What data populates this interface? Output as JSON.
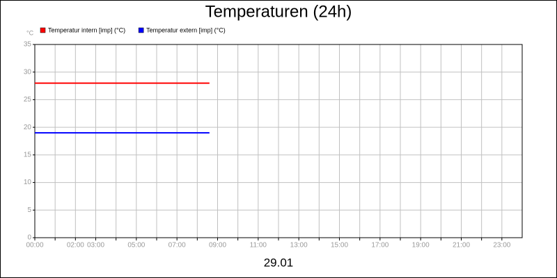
{
  "chart_data": {
    "type": "line",
    "title": "Temperaturen (24h)",
    "ylabel": "°C",
    "xlabel": "29.01",
    "x": [
      0,
      8.6
    ],
    "series": [
      {
        "name": "Temperatur intern [imp] (°C)",
        "color": "#ff0000",
        "values": [
          28,
          28
        ]
      },
      {
        "name": "Temperatur extern [imp] (°C)",
        "color": "#0000ff",
        "values": [
          19,
          19
        ]
      }
    ],
    "xlim": [
      0,
      24
    ],
    "xticks": [
      {
        "value": 0,
        "label": "00:00"
      },
      {
        "value": 1,
        "label": null
      },
      {
        "value": 2,
        "label": "02:00"
      },
      {
        "value": 3,
        "label": "03:00"
      },
      {
        "value": 4,
        "label": null
      },
      {
        "value": 5,
        "label": "05:00"
      },
      {
        "value": 6,
        "label": null
      },
      {
        "value": 7,
        "label": "07:00"
      },
      {
        "value": 8,
        "label": null
      },
      {
        "value": 9,
        "label": "09:00"
      },
      {
        "value": 10,
        "label": null
      },
      {
        "value": 11,
        "label": "11:00"
      },
      {
        "value": 12,
        "label": null
      },
      {
        "value": 13,
        "label": "13:00"
      },
      {
        "value": 14,
        "label": null
      },
      {
        "value": 15,
        "label": "15:00"
      },
      {
        "value": 16,
        "label": null
      },
      {
        "value": 17,
        "label": "17:00"
      },
      {
        "value": 18,
        "label": null
      },
      {
        "value": 19,
        "label": "19:00"
      },
      {
        "value": 20,
        "label": null
      },
      {
        "value": 21,
        "label": "21:00"
      },
      {
        "value": 22,
        "label": null
      },
      {
        "value": 23,
        "label": "23:00"
      }
    ],
    "ylim": [
      0,
      35
    ],
    "yticks": [
      0,
      5,
      10,
      15,
      20,
      25,
      30,
      35
    ],
    "grid": true
  }
}
